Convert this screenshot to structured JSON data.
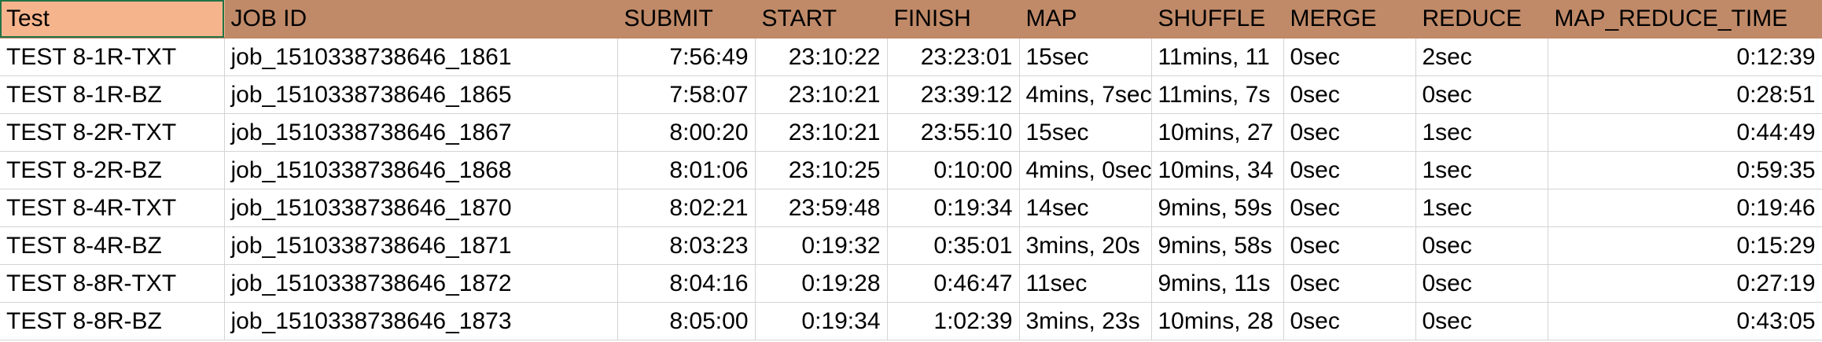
{
  "sheet": {
    "headers": {
      "test": "Test",
      "job_id": "JOB ID",
      "submit": "SUBMIT",
      "start": "START",
      "finish": "FINISH",
      "map": "MAP",
      "shuffle": "SHUFFLE",
      "merge": "MERGE",
      "reduce": "REDUCE",
      "map_reduce_time": "MAP_REDUCE_TIME"
    },
    "rows": [
      {
        "test": "TEST 8-1R-TXT",
        "job_id": "job_1510338738646_1861",
        "submit": "7:56:49",
        "start": "23:10:22",
        "finish": "23:23:01",
        "map": "15sec",
        "shuffle": "11mins, 11",
        "merge": "0sec",
        "reduce": "2sec",
        "map_reduce_time": "0:12:39"
      },
      {
        "test": "TEST 8-1R-BZ",
        "job_id": "job_1510338738646_1865",
        "submit": "7:58:07",
        "start": "23:10:21",
        "finish": "23:39:12",
        "map": "4mins, 7sec",
        "shuffle": "11mins, 7s",
        "merge": "0sec",
        "reduce": "0sec",
        "map_reduce_time": "0:28:51"
      },
      {
        "test": "TEST 8-2R-TXT",
        "job_id": "job_1510338738646_1867",
        "submit": "8:00:20",
        "start": "23:10:21",
        "finish": "23:55:10",
        "map": "15sec",
        "shuffle": "10mins, 27",
        "merge": "0sec",
        "reduce": "1sec",
        "map_reduce_time": "0:44:49"
      },
      {
        "test": "TEST 8-2R-BZ",
        "job_id": "job_1510338738646_1868",
        "submit": "8:01:06",
        "start": "23:10:25",
        "finish": "0:10:00",
        "map": "4mins, 0sec",
        "shuffle": "10mins, 34",
        "merge": "0sec",
        "reduce": "1sec",
        "map_reduce_time": "0:59:35"
      },
      {
        "test": "TEST 8-4R-TXT",
        "job_id": "job_1510338738646_1870",
        "submit": "8:02:21",
        "start": "23:59:48",
        "finish": "0:19:34",
        "map": "14sec",
        "shuffle": "9mins, 59s",
        "merge": "0sec",
        "reduce": "1sec",
        "map_reduce_time": "0:19:46"
      },
      {
        "test": "TEST 8-4R-BZ",
        "job_id": "job_1510338738646_1871",
        "submit": "8:03:23",
        "start": "0:19:32",
        "finish": "0:35:01",
        "map": "3mins, 20s",
        "shuffle": "9mins, 58s",
        "merge": "0sec",
        "reduce": "0sec",
        "map_reduce_time": "0:15:29"
      },
      {
        "test": "TEST 8-8R-TXT",
        "job_id": "job_1510338738646_1872",
        "submit": "8:04:16",
        "start": "0:19:28",
        "finish": "0:46:47",
        "map": "11sec",
        "shuffle": "9mins, 11s",
        "merge": "0sec",
        "reduce": "0sec",
        "map_reduce_time": "0:27:19"
      },
      {
        "test": "TEST 8-8R-BZ",
        "job_id": "job_1510338738646_1873",
        "submit": "8:05:00",
        "start": "0:19:34",
        "finish": "1:02:39",
        "map": "3mins, 23s",
        "shuffle": "10mins, 28",
        "merge": "0sec",
        "reduce": "0sec",
        "map_reduce_time": "0:43:05"
      }
    ],
    "colors": {
      "header_fill": "#c08a68",
      "first_header_fill": "#f6b48c",
      "gridline": "#d4d4d4",
      "selection": "#217346"
    }
  }
}
